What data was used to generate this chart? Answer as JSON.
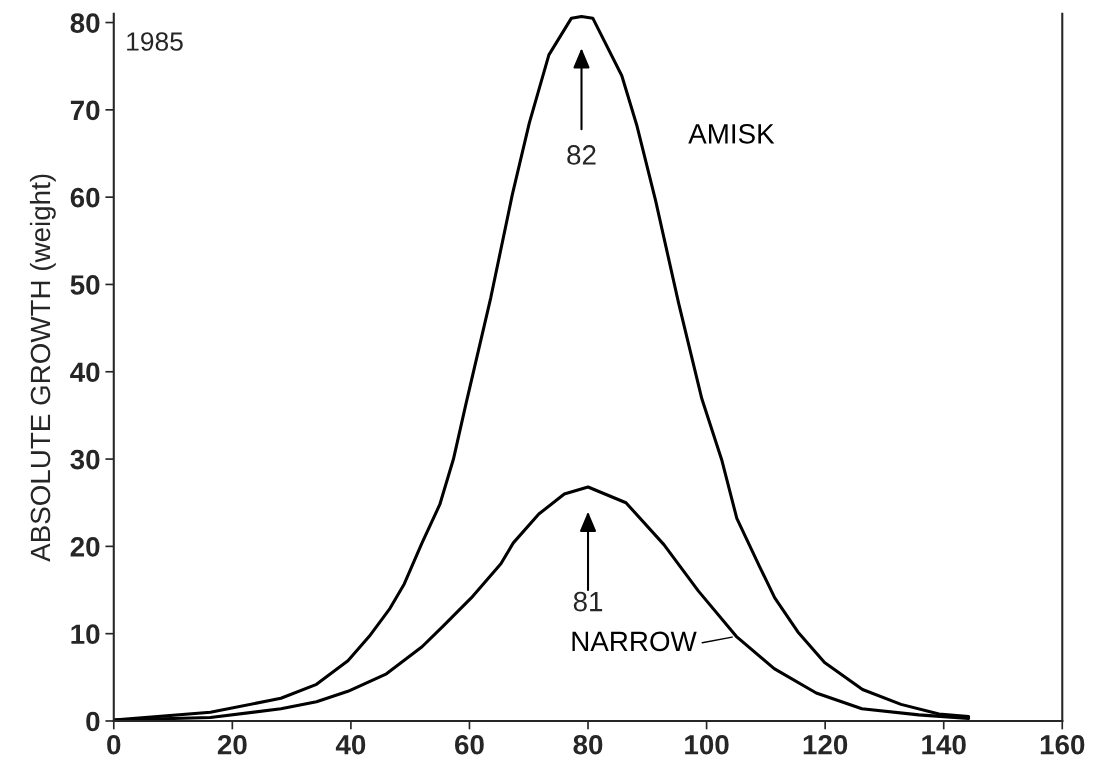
{
  "chart_data": {
    "type": "line",
    "ylabel": "ABSOLUTE GROWTH (weight)",
    "xlim": [
      0,
      160
    ],
    "xticks": [
      0,
      20,
      40,
      60,
      80,
      100,
      120,
      140,
      160
    ],
    "ylim": [
      0,
      81
    ],
    "yticks": [
      0,
      10,
      20,
      30,
      40,
      50,
      60,
      70,
      80
    ],
    "grid": false,
    "marker": "none",
    "line_style": "solid",
    "annotations": [
      "1985",
      "82",
      "81"
    ],
    "series": [
      {
        "name": "AMISK",
        "color": "#000000",
        "x": [
          0,
          16.3,
          28.2,
          34.2,
          39.5,
          43.1,
          46.6,
          49.0,
          52.0,
          55.0,
          57.3,
          59.4,
          63.6,
          67.2,
          70.1,
          73.4,
          77.2,
          78.9,
          80.8,
          85.7,
          88.2,
          91.4,
          95.3,
          99.2,
          102.6,
          105.1,
          109.0,
          111.5,
          115.4,
          119.9,
          126.3,
          132.8,
          139.2,
          144.2
        ],
        "values": [
          0.1,
          1.0,
          2.6,
          4.2,
          6.9,
          9.7,
          12.9,
          15.7,
          20.4,
          24.8,
          30.0,
          36.3,
          48.5,
          60.2,
          68.5,
          76.3,
          80.5,
          80.7,
          80.5,
          73.9,
          68.3,
          59.6,
          47.8,
          36.9,
          29.8,
          23.2,
          17.6,
          14.1,
          10.2,
          6.7,
          3.6,
          1.9,
          0.8,
          0.5
        ]
      },
      {
        "name": "NARROW",
        "color": "#000000",
        "x": [
          0,
          16.3,
          28.2,
          34.2,
          39.5,
          46.0,
          52.0,
          55.6,
          60.3,
          65.3,
          67.4,
          71.7,
          76.0,
          80.0,
          86.4,
          92.8,
          98.6,
          105.0,
          111.4,
          118.5,
          126.2,
          135.8,
          144.2
        ],
        "values": [
          0.1,
          0.4,
          1.4,
          2.2,
          3.4,
          5.4,
          8.5,
          10.9,
          14.1,
          18.0,
          20.4,
          23.7,
          26.0,
          26.8,
          25.0,
          20.2,
          14.9,
          9.7,
          6.0,
          3.2,
          1.4,
          0.7,
          0.3
        ]
      }
    ]
  }
}
